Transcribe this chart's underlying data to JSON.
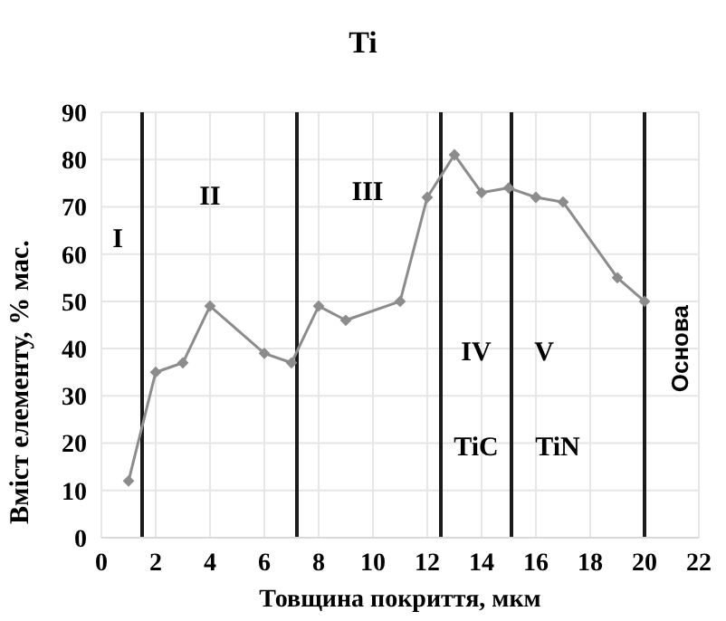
{
  "chart_data": {
    "type": "line",
    "title": "Ti",
    "xlabel": "Товщина покриття, мкм",
    "ylabel": "Вміст елементу, % мас.",
    "x": [
      1,
      2,
      3,
      4,
      6,
      7,
      8,
      9,
      11,
      12,
      13,
      14,
      15,
      16,
      17,
      19,
      20
    ],
    "series": [
      {
        "color": "#8c8c8c",
        "values": [
          12,
          35,
          37,
          49,
          39,
          37,
          49,
          46,
          50,
          72,
          81,
          73,
          74,
          72,
          71,
          55,
          50
        ]
      }
    ],
    "xlim": [
      0,
      22
    ],
    "xticks": [
      0,
      2,
      4,
      6,
      8,
      10,
      12,
      14,
      16,
      18,
      20,
      22
    ],
    "ylim": [
      0,
      90
    ],
    "yticks": [
      0,
      10,
      20,
      30,
      40,
      50,
      60,
      70,
      80,
      90
    ],
    "grid": true,
    "marker": "diamond",
    "line_style": "solid",
    "ref_lines": [
      {
        "axis": "x",
        "value": 1.5,
        "color": "#1a1a1a"
      },
      {
        "axis": "x",
        "value": 7.2,
        "color": "#1a1a1a"
      },
      {
        "axis": "x",
        "value": 12.5,
        "color": "#1a1a1a"
      },
      {
        "axis": "x",
        "value": 15.1,
        "color": "#1a1a1a"
      },
      {
        "axis": "x",
        "value": 20,
        "color": "#1a1a1a"
      }
    ],
    "annotations": [
      "I",
      "II",
      "III",
      "IV",
      "V",
      "TiC",
      "TiN",
      "Основа"
    ]
  }
}
